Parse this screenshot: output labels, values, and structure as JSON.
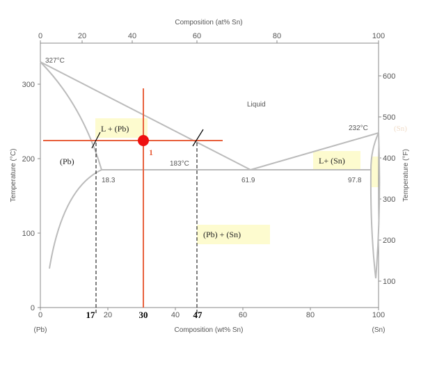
{
  "diagram": {
    "title_top": "Composition (at% Sn)",
    "title_bottom": "Composition (wt% Sn)",
    "ylabel_left": "Temperature (°C)",
    "ylabel_right": "Temperature (°F)",
    "bottom_ticks": [
      "0",
      "20",
      "40",
      "60",
      "80",
      "100"
    ],
    "top_ticks": [
      "0",
      "20",
      "40",
      "60",
      "80",
      "100"
    ],
    "left_ticks": [
      "0",
      "100",
      "200",
      "300"
    ],
    "right_ticks": [
      "100",
      "200",
      "300",
      "400",
      "500",
      "600"
    ],
    "end_left": "(Pb)",
    "end_right": "(Sn)",
    "labels": {
      "melt_pb": "327°C",
      "melt_sn": "232°C",
      "eutectic_temp": "183°C",
      "liquid": "Liquid",
      "comp_183": "18.3",
      "comp_619": "61.9",
      "comp_978": "97.8"
    },
    "regions": {
      "l_pb": "L + (Pb)",
      "pb": "(Pb)",
      "l_sn": "L+ (Sn)",
      "pb_sn": "(Pb) + (Sn)",
      "sn_faded": "(Sn)"
    },
    "annotations": {
      "point": "1",
      "x17": "17",
      "x30": "30",
      "x47": "47"
    },
    "colors": {
      "phase_lines": "#bbbbbb",
      "axes": "#888888",
      "red": "#e8603c",
      "point": "#ee1111",
      "highlight": "#fdfbcf"
    }
  }
}
